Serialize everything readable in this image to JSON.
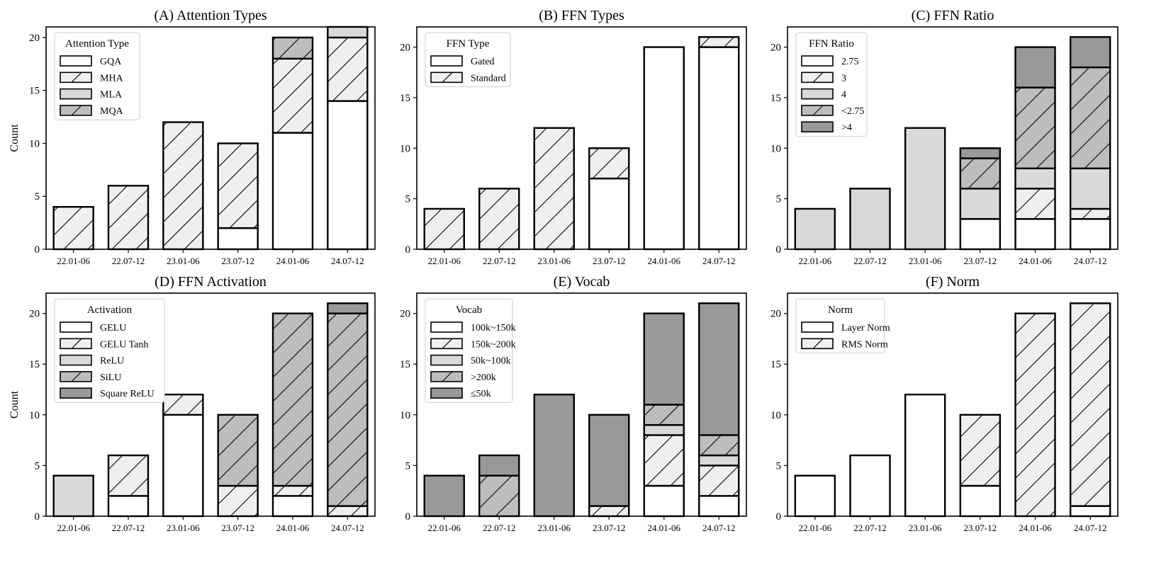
{
  "figure": {
    "ylabel": "Count",
    "categories": [
      "22.01-06",
      "22.07-12",
      "23.01-06",
      "23.07-12",
      "24.01-06",
      "24.07-12"
    ]
  },
  "styles": {
    "GQA": {
      "fill": "#ffffff",
      "hatch": false
    },
    "MHA": {
      "fill": "#efefef",
      "hatch": true
    },
    "MLA": {
      "fill": "#d9d9d9",
      "hatch": false
    },
    "MQA": {
      "fill": "#bdbdbd",
      "hatch": true
    },
    "Gated": {
      "fill": "#ffffff",
      "hatch": false
    },
    "Standard": {
      "fill": "#efefef",
      "hatch": true
    },
    "2.75": {
      "fill": "#ffffff",
      "hatch": false
    },
    "3": {
      "fill": "#efefef",
      "hatch": true
    },
    "4": {
      "fill": "#d9d9d9",
      "hatch": false
    },
    "<2.75": {
      "fill": "#bdbdbd",
      "hatch": true
    },
    ">4": {
      "fill": "#999999",
      "hatch": false
    },
    "GELU": {
      "fill": "#ffffff",
      "hatch": false
    },
    "GELU Tanh": {
      "fill": "#efefef",
      "hatch": true
    },
    "ReLU": {
      "fill": "#d9d9d9",
      "hatch": false
    },
    "SiLU": {
      "fill": "#bdbdbd",
      "hatch": true
    },
    "Square ReLU": {
      "fill": "#999999",
      "hatch": false
    },
    "100k~150k": {
      "fill": "#ffffff",
      "hatch": false
    },
    "150k~200k": {
      "fill": "#efefef",
      "hatch": true
    },
    "50k~100k": {
      "fill": "#d9d9d9",
      "hatch": false
    },
    ">200k": {
      "fill": "#bdbdbd",
      "hatch": true
    },
    "≤50k": {
      "fill": "#999999",
      "hatch": false
    },
    "Layer Norm": {
      "fill": "#ffffff",
      "hatch": false
    },
    "RMS Norm": {
      "fill": "#efefef",
      "hatch": true
    }
  },
  "chart_data": [
    {
      "type": "bar",
      "stacked": true,
      "title": "(A) Attention Types",
      "legend_title": "Attention Type",
      "categories": [
        "22.01-06",
        "22.07-12",
        "23.01-06",
        "23.07-12",
        "24.01-06",
        "24.07-12"
      ],
      "ylim": [
        0,
        21
      ],
      "yticks": [
        0,
        5,
        10,
        15,
        20
      ],
      "ylabel": "Count",
      "series": [
        {
          "name": "GQA",
          "values": [
            0,
            0,
            0,
            2,
            11,
            14
          ]
        },
        {
          "name": "MHA",
          "values": [
            4,
            6,
            12,
            8,
            7,
            6
          ]
        },
        {
          "name": "MLA",
          "values": [
            0,
            0,
            0,
            0,
            0,
            1
          ]
        },
        {
          "name": "MQA",
          "values": [
            0,
            0,
            0,
            0,
            2,
            0
          ]
        }
      ]
    },
    {
      "type": "bar",
      "stacked": true,
      "title": "(B) FFN Types",
      "legend_title": "FFN Type",
      "categories": [
        "22.01-06",
        "22.07-12",
        "23.01-06",
        "23.07-12",
        "24.01-06",
        "24.07-12"
      ],
      "ylim": [
        0,
        22
      ],
      "yticks": [
        0,
        5,
        10,
        15,
        20
      ],
      "series": [
        {
          "name": "Gated",
          "values": [
            0,
            0,
            0,
            7,
            20,
            20
          ]
        },
        {
          "name": "Standard",
          "values": [
            4,
            6,
            12,
            3,
            0,
            1
          ]
        }
      ]
    },
    {
      "type": "bar",
      "stacked": true,
      "title": "(C) FFN Ratio",
      "legend_title": "FFN Ratio",
      "categories": [
        "22.01-06",
        "22.07-12",
        "23.01-06",
        "23.07-12",
        "24.01-06",
        "24.07-12"
      ],
      "ylim": [
        0,
        22
      ],
      "yticks": [
        0,
        5,
        10,
        15,
        20
      ],
      "series": [
        {
          "name": "2.75",
          "values": [
            0,
            0,
            0,
            3,
            3,
            3
          ]
        },
        {
          "name": "3",
          "values": [
            0,
            0,
            0,
            0,
            3,
            1
          ]
        },
        {
          "name": "4",
          "values": [
            4,
            6,
            12,
            3,
            2,
            4
          ]
        },
        {
          "name": "<2.75",
          "values": [
            0,
            0,
            0,
            3,
            8,
            10
          ]
        },
        {
          "name": ">4",
          "values": [
            0,
            0,
            0,
            1,
            4,
            3
          ]
        }
      ]
    },
    {
      "type": "bar",
      "stacked": true,
      "title": "(D) FFN Activation",
      "legend_title": "Activation",
      "categories": [
        "22.01-06",
        "22.07-12",
        "23.01-06",
        "23.07-12",
        "24.01-06",
        "24.07-12"
      ],
      "ylim": [
        0,
        22
      ],
      "yticks": [
        0,
        5,
        10,
        15,
        20
      ],
      "ylabel": "Count",
      "series": [
        {
          "name": "GELU",
          "values": [
            0,
            2,
            10,
            0,
            2,
            0
          ]
        },
        {
          "name": "GELU Tanh",
          "values": [
            0,
            4,
            2,
            3,
            1,
            1
          ]
        },
        {
          "name": "ReLU",
          "values": [
            4,
            0,
            0,
            0,
            0,
            0
          ]
        },
        {
          "name": "SiLU",
          "values": [
            0,
            0,
            0,
            7,
            17,
            19
          ]
        },
        {
          "name": "Square ReLU",
          "values": [
            0,
            0,
            0,
            0,
            0,
            1
          ]
        }
      ]
    },
    {
      "type": "bar",
      "stacked": true,
      "title": "(E) Vocab",
      "legend_title": "Vocab",
      "categories": [
        "22.01-06",
        "22.07-12",
        "23.01-06",
        "23.07-12",
        "24.01-06",
        "24.07-12"
      ],
      "ylim": [
        0,
        22
      ],
      "yticks": [
        0,
        5,
        10,
        15,
        20
      ],
      "series": [
        {
          "name": "100k~150k",
          "values": [
            0,
            0,
            0,
            0,
            3,
            2
          ]
        },
        {
          "name": "150k~200k",
          "values": [
            0,
            0,
            0,
            1,
            5,
            3
          ]
        },
        {
          "name": "50k~100k",
          "values": [
            0,
            0,
            0,
            0,
            1,
            1
          ]
        },
        {
          "name": ">200k",
          "values": [
            0,
            4,
            0,
            0,
            2,
            2
          ]
        },
        {
          "name": "≤50k",
          "values": [
            4,
            2,
            12,
            9,
            9,
            13
          ]
        }
      ]
    },
    {
      "type": "bar",
      "stacked": true,
      "title": "(F) Norm",
      "legend_title": "Norm",
      "categories": [
        "22.01-06",
        "22.07-12",
        "23.01-06",
        "23.07-12",
        "24.01-06",
        "24.07-12"
      ],
      "ylim": [
        0,
        22
      ],
      "yticks": [
        0,
        5,
        10,
        15,
        20
      ],
      "series": [
        {
          "name": "Layer Norm",
          "values": [
            4,
            6,
            12,
            3,
            0,
            1
          ]
        },
        {
          "name": "RMS Norm",
          "values": [
            0,
            0,
            0,
            7,
            20,
            20
          ]
        }
      ]
    }
  ]
}
